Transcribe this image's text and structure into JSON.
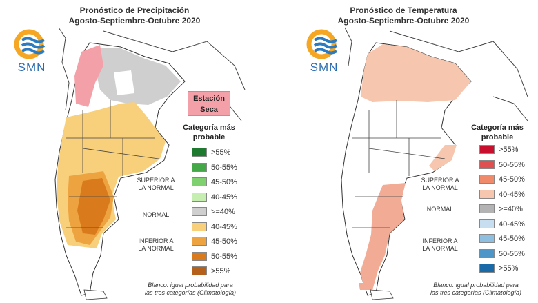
{
  "precipitation": {
    "title_line1": "Pronóstico de Precipitación",
    "title_line2": "Agosto-Septiembre-Octubre 2020",
    "logo_text": "SMN",
    "dry_season_label_line1": "Estación",
    "dry_season_label_line2": "Seca",
    "legend_title_line1": "Categoría más",
    "legend_title_line2": "probable",
    "legend": [
      {
        "label": ">55%",
        "color": "#1e7a2e"
      },
      {
        "label": "50-55%",
        "color": "#44a848"
      },
      {
        "label": "45-50%",
        "color": "#7fd06e"
      },
      {
        "label": "40-45%",
        "color": "#c5eeb0"
      },
      {
        "label": ">=40%",
        "color": "#cfcfcf"
      },
      {
        "label": "40-45%",
        "color": "#f8cf7a"
      },
      {
        "label": "45-50%",
        "color": "#eda440"
      },
      {
        "label": "50-55%",
        "color": "#d97a1c"
      },
      {
        "label": ">55%",
        "color": "#b5611c"
      }
    ],
    "cat_superior_line1": "SUPERIOR A",
    "cat_superior_line2": "LA NORMAL",
    "cat_normal": "NORMAL",
    "cat_inferior_line1": "INFERIOR A",
    "cat_inferior_line2": "LA NORMAL",
    "footnote_line1": "Blanco: igual probabilidad para",
    "footnote_line2": "las tres categorías (Climatología)"
  },
  "temperature": {
    "title_line1": "Pronóstico de Temperatura",
    "title_line2": "Agosto-Septiembre-Octubre 2020",
    "logo_text": "SMN",
    "legend_title_line1": "Categoría más",
    "legend_title_line2": "probable",
    "legend": [
      {
        "label": ">55%",
        "color": "#c8102e"
      },
      {
        "label": "50-55%",
        "color": "#e05050"
      },
      {
        "label": "45-50%",
        "color": "#ef8a6a"
      },
      {
        "label": "40-45%",
        "color": "#f6c6ae"
      },
      {
        "label": ">=40%",
        "color": "#b3b3b3"
      },
      {
        "label": "40-45%",
        "color": "#c6def0"
      },
      {
        "label": "45-50%",
        "color": "#8ebfe0"
      },
      {
        "label": "50-55%",
        "color": "#4e95c8"
      },
      {
        "label": ">55%",
        "color": "#1a6aa8"
      }
    ],
    "cat_superior_line1": "SUPERIOR A",
    "cat_superior_line2": "LA NORMAL",
    "cat_normal": "NORMAL",
    "cat_inferior_line1": "INFERIOR A",
    "cat_inferior_line2": "LA NORMAL",
    "footnote_line1": "Blanco: igual probabilidad para",
    "footnote_line2": "las tres categorías (Climatología)"
  },
  "colors": {
    "logo_orange": "#f5a623",
    "logo_blue": "#2b7bc0",
    "border": "#333333"
  }
}
